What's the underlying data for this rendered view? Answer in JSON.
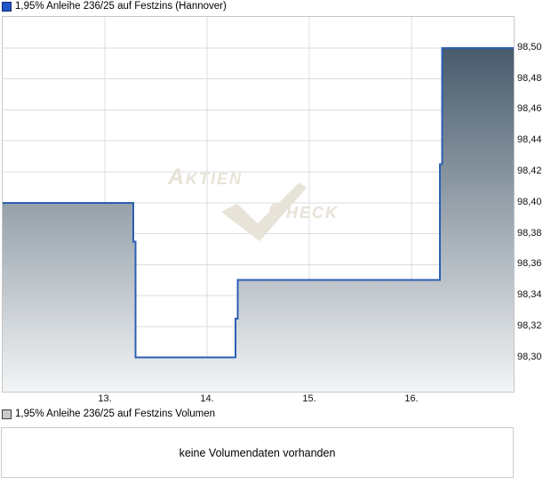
{
  "price_chart": {
    "legend": {
      "label": "1,95% Anleihe 236/25 auf Festzins (Hannover)",
      "swatch_color": "#1f56c8",
      "swatch_border": "#0d2f6e"
    },
    "watermark": {
      "text_left": "Aktien",
      "text_right": "Check"
    }
  },
  "volume_chart": {
    "legend": {
      "label": "1,95% Anleihe 236/25 auf Festzins Volumen",
      "swatch_color": "#c9c9c9",
      "swatch_border": "#3c3c3c"
    },
    "message": "keine Volumendaten vorhanden"
  },
  "chart_data": {
    "type": "area",
    "title": "1,95% Anleihe 236/25 auf Festzins (Hannover)",
    "xlabel": "",
    "ylabel": "",
    "grid": true,
    "legend_position": "top-left",
    "xlim": [
      12,
      17
    ],
    "ylim": [
      98.278,
      98.52
    ],
    "x_ticks": [
      {
        "label": "13.",
        "value": 13
      },
      {
        "label": "14.",
        "value": 14
      },
      {
        "label": "15.",
        "value": 15
      },
      {
        "label": "16.",
        "value": 16
      }
    ],
    "y_ticks": [
      {
        "label": "98,50",
        "value": 98.5
      },
      {
        "label": "98,48",
        "value": 98.48
      },
      {
        "label": "98,46",
        "value": 98.46
      },
      {
        "label": "98,44",
        "value": 98.44
      },
      {
        "label": "98,42",
        "value": 98.42
      },
      {
        "label": "98,40",
        "value": 98.4
      },
      {
        "label": "98,38",
        "value": 98.38
      },
      {
        "label": "98,36",
        "value": 98.36
      },
      {
        "label": "98,34",
        "value": 98.34
      },
      {
        "label": "98,32",
        "value": 98.32
      },
      {
        "label": "98,30",
        "value": 98.3
      }
    ],
    "series": [
      {
        "name": "1,95% Anleihe 236/25 auf Festzins (Hannover)",
        "type": "step-area",
        "line_color": "#2c5fb3",
        "fill_gradient_top": "#384d60",
        "fill_gradient_bottom": "#f3f5f6",
        "points": [
          [
            12.0,
            98.4
          ],
          [
            13.28,
            98.4
          ],
          [
            13.28,
            98.375
          ],
          [
            13.3,
            98.375
          ],
          [
            13.3,
            98.3
          ],
          [
            14.28,
            98.3
          ],
          [
            14.28,
            98.325
          ],
          [
            14.3,
            98.325
          ],
          [
            14.3,
            98.35
          ],
          [
            16.28,
            98.35
          ],
          [
            16.28,
            98.425
          ],
          [
            16.3,
            98.425
          ],
          [
            16.3,
            98.5
          ],
          [
            17.0,
            98.5
          ]
        ]
      }
    ],
    "grid_color": "#dbdcdf"
  }
}
